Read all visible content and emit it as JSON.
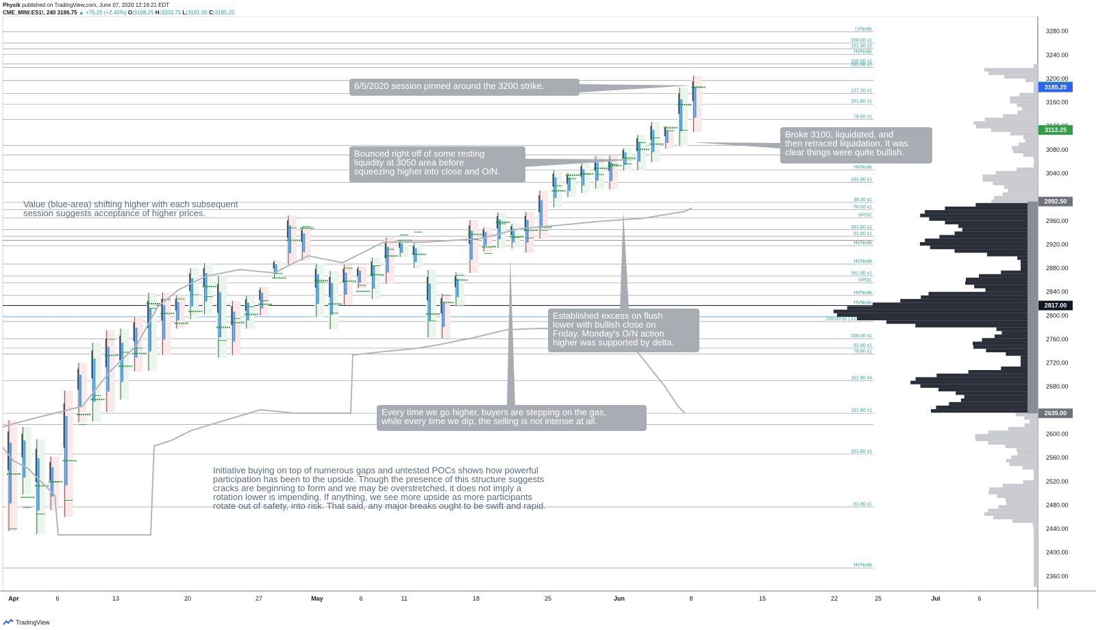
{
  "header": {
    "publisher": "Physik",
    "published_text": "published on TradingView.com, June 07, 2020 12:19:21 EDT",
    "symbol": "CME_MINI:ES1!, 240",
    "last": "3186.75",
    "change": "▲ +76.25 (+2.45%)",
    "open_label": "O:",
    "open": "3198.25",
    "high_label": "H:",
    "high": "3203.75",
    "low_label": "L:",
    "low": "3181.00",
    "close_label": "C:",
    "close": "3185.25"
  },
  "footer": {
    "brand": "TradingView"
  },
  "notes": [
    {
      "id": "note-3200",
      "text": "6/5/2020 session pinned around the 3200 strike."
    },
    {
      "id": "note-3100",
      "text": "Broke 3100, liquidated, and\nthen retraced liquidation. It was\nclear things were quite bullish."
    },
    {
      "id": "note-3050",
      "text": "Bounced right off of some resting\nliquidity at 3050 area before\nsqueezing higher into close and O/N."
    },
    {
      "id": "note-excess",
      "text": "Established excess on flush\nlower with bullish close on\nFriday. Monday's O/N action\nhigher was supported by delta."
    },
    {
      "id": "note-gas",
      "text": "Every time we go higher, buyers are stepping on the gas,\nwhile every time we dip, the selling is not intense at all."
    }
  ],
  "free_texts": [
    {
      "id": "value-text",
      "text": "Value (blue-area) shifting higher with each subsequent\nsession suggests acceptance of higher prices."
    },
    {
      "id": "initiative-text",
      "text": "Initiative buying on top of numerous gaps and untested POCs shows how powerful\nparticipation has been to the upside. Though the presence of this structure suggests\ncracks are beginning to form and we may be overstretched, it does not imply a\nrotation lower is impending. If anything, we see more upside as more participants\nrotate out of safety, into risk. That said, any major breaks ought to be swift and rapid."
    }
  ],
  "colors": {
    "grid_line": "#9598a1",
    "red_line": "#ef5350",
    "blue_line": "#4fa3d9",
    "profile_dark": "#2a2e39",
    "profile_light": "#c9cbd0",
    "label_green": "#2e9e45",
    "label_blue": "#2962ff",
    "label_gray": "#6e727b",
    "label_black": "#131722",
    "level_text": "#26a69a"
  },
  "chart_data": {
    "type": "candlestick-market-profile",
    "symbol": "ES1!",
    "timeframe": "240",
    "ylim": [
      2335,
      3305
    ],
    "y_ticks": [
      3280,
      3240,
      3200,
      3160,
      3120,
      3080,
      3040,
      2960,
      2920,
      2880,
      2840,
      2800,
      2760,
      2720,
      2680,
      2600,
      2560,
      2520,
      2480,
      2440,
      2400,
      2360
    ],
    "x_ticks": [
      "Apr",
      "6",
      "13",
      "20",
      "27",
      "May",
      "6",
      "11",
      "18",
      "25",
      "Jun",
      "8",
      "15",
      "22",
      "25",
      "Jul",
      "6"
    ],
    "price_labels": [
      {
        "value": 3186.75,
        "text": "3186.75",
        "color": "green"
      },
      {
        "value": 3185.25,
        "text": "3185.25",
        "color": "blue"
      },
      {
        "value": 3113.25,
        "text": "3113.25",
        "color": "green"
      },
      {
        "value": 2992.5,
        "text": "2992.50",
        "color": "gray"
      },
      {
        "value": 2817.0,
        "text": "2817.00",
        "color": "black"
      },
      {
        "value": 2635.0,
        "text": "2635.00",
        "color": "gray"
      }
    ],
    "levels": [
      {
        "value": 3279,
        "label": "LVNode"
      },
      {
        "value": 3260,
        "label": "100.00 x1"
      },
      {
        "value": 3250,
        "label": "161.80 x2"
      },
      {
        "value": 3241,
        "label": "HVNode"
      },
      {
        "value": 3225,
        "label": "100.00 x2"
      },
      {
        "value": 3219,
        "label": "161.80 x1"
      },
      {
        "value": 3197,
        "label": ""
      },
      {
        "value": 3175,
        "label": "127.20 x1"
      },
      {
        "value": 3157,
        "label": "161.80 x1"
      },
      {
        "value": 3131,
        "label": "78.60 x1"
      },
      {
        "value": 3087,
        "label": ""
      },
      {
        "value": 3071,
        "label": "HVNode"
      },
      {
        "value": 3046,
        "label": "HVNode"
      },
      {
        "value": 3025,
        "label": "161.80 x1"
      },
      {
        "value": 2991,
        "label": "38.20 x1"
      },
      {
        "value": 2979,
        "label": "50.00 x1"
      },
      {
        "value": 2965,
        "label": "VPOC"
      },
      {
        "value": 2945,
        "label": "161.80 x1"
      },
      {
        "value": 2934,
        "label": "61.80 x1"
      },
      {
        "value": 2918,
        "label": "HVNode"
      },
      {
        "value": 2887,
        "label": "HVNode"
      },
      {
        "value": 2867,
        "label": "161.80 x1"
      },
      {
        "value": 2855,
        "label": "VPOC"
      },
      {
        "value": 2834,
        "label": "HVNode"
      },
      {
        "value": 2817,
        "label": "HVNode"
      },
      {
        "value": 2790,
        "label": "100.00 x1 | 127.20 x1"
      },
      {
        "value": 2761,
        "label": "100.00 x1"
      },
      {
        "value": 2745,
        "label": "61.80 x1"
      },
      {
        "value": 2735,
        "label": "78.60 x1"
      },
      {
        "value": 2690,
        "label": "161.80 x4"
      },
      {
        "value": 2635,
        "label": "161.80 x1"
      },
      {
        "value": 2616,
        "label": ""
      },
      {
        "value": 2566,
        "label": "161.80 x1"
      },
      {
        "value": 2477,
        "label": "61.80 x1"
      },
      {
        "value": 2374,
        "label": "HVNode"
      }
    ],
    "sessions": [
      [
        2623,
        2436,
        2625,
        2440,
        0
      ],
      [
        2612,
        2498,
        2510,
        2476,
        1
      ],
      [
        2591,
        2431,
        2560,
        2465,
        1
      ],
      [
        2562,
        2472,
        2520,
        2519,
        0
      ],
      [
        2673,
        2460,
        2622,
        2488,
        0
      ],
      [
        2720,
        2620,
        2650,
        2616,
        0
      ],
      [
        2754,
        2621,
        2652,
        2665,
        1
      ],
      [
        2775,
        2637,
        2706,
        2760,
        0
      ],
      [
        2778,
        2658,
        2691,
        2738,
        1
      ],
      [
        2798,
        2706,
        2727,
        2745,
        0
      ],
      [
        2838,
        2707,
        2828,
        2812,
        1
      ],
      [
        2839,
        2733,
        2780,
        2827,
        0
      ],
      [
        2834,
        2778,
        2746,
        2828,
        0
      ],
      [
        2880,
        2794,
        2779,
        2835,
        1
      ],
      [
        2889,
        2802,
        2866,
        2832,
        1
      ],
      [
        2867,
        2729,
        2802,
        2758,
        1
      ],
      [
        2825,
        2733,
        2781,
        2795,
        0
      ],
      [
        2833,
        2778,
        2789,
        2815,
        1
      ],
      [
        2848,
        2800,
        2813,
        2825,
        0
      ],
      [
        2893,
        2863,
        2856,
        2871,
        1
      ],
      [
        2969,
        2884,
        2906,
        2948,
        0
      ],
      [
        2950,
        2893,
        2945,
        2950,
        0
      ],
      [
        2888,
        2797,
        2862,
        2856,
        1
      ],
      [
        2875,
        2777,
        2835,
        2804,
        1
      ],
      [
        2886,
        2818,
        2836,
        2880,
        0
      ],
      [
        2883,
        2846,
        2831,
        2851,
        0
      ],
      [
        2898,
        2828,
        2854,
        2884,
        1
      ],
      [
        2932,
        2853,
        2889,
        2912,
        0
      ],
      [
        2927,
        2899,
        2918,
        2936,
        1
      ],
      [
        2922,
        2880,
        2866,
        2941,
        1
      ],
      [
        2877,
        2763,
        2814,
        2791,
        1
      ],
      [
        2837,
        2762,
        2810,
        2834,
        0
      ],
      [
        2873,
        2817,
        2852,
        2868,
        1
      ],
      [
        2961,
        2872,
        2946,
        2928,
        0
      ],
      [
        2949,
        2908,
        2927,
        2905,
        0
      ],
      [
        2974,
        2914,
        2960,
        2955,
        1
      ],
      [
        2955,
        2913,
        2934,
        2932,
        1
      ],
      [
        2975,
        2906,
        2957,
        2931,
        0
      ],
      [
        3011,
        2930,
        2954,
        2944,
        0
      ],
      [
        3046,
        2983,
        3002,
        3019,
        1
      ],
      [
        3041,
        3000,
        3043,
        3031,
        1
      ],
      [
        3057,
        3007,
        3039,
        3039,
        1
      ],
      [
        3069,
        3014,
        3059,
        3038,
        1
      ],
      [
        3070,
        3013,
        3051,
        3055,
        0
      ],
      [
        3083,
        3045,
        3076,
        3056,
        1
      ],
      [
        3105,
        3045,
        3069,
        3092,
        1
      ],
      [
        3127,
        3059,
        3079,
        3100,
        1
      ],
      [
        3120,
        3082,
        3122,
        3112,
        0
      ],
      [
        3185,
        3086,
        3199,
        3113,
        1
      ],
      [
        3205,
        3110,
        3185,
        3186,
        0
      ]
    ]
  }
}
